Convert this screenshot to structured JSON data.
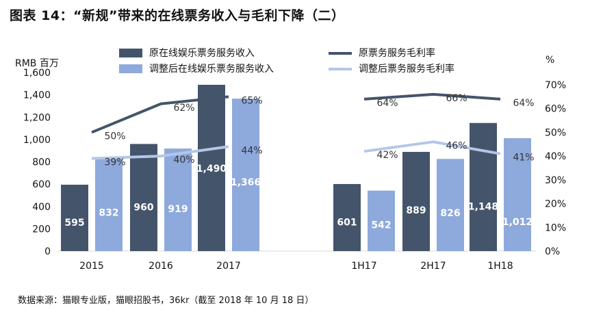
{
  "title": "图表 14：“新规”带来的在线票务收入与毛利下降（二）",
  "source": "数据来源：猫眼专业版，猫眼招股书，36kr（截至 2018 年 10 月 18 日）",
  "chart_data": {
    "type": "bar",
    "left_axis_label": "RMB 百万",
    "right_axis_label": "%",
    "ylim": [
      0,
      1600
    ],
    "yticks": [
      "0",
      "200",
      "400",
      "600",
      "800",
      "1,000",
      "1,200",
      "1,400",
      "1,600"
    ],
    "y2lim": [
      0,
      70
    ],
    "y2ticks": [
      "0%",
      "10%",
      "20%",
      "30%",
      "40%",
      "50%",
      "60%",
      "70%"
    ],
    "categories": [
      "2015",
      "2016",
      "2017",
      "1H17",
      "2H17",
      "1H18"
    ],
    "series": [
      {
        "name": "原在线娱乐票务服务收入",
        "type": "bar",
        "color": "#44546A",
        "values": [
          595,
          960,
          1490,
          601,
          889,
          1148
        ],
        "labels": [
          "595",
          "960",
          "1,490",
          "601",
          "889",
          "1,148"
        ]
      },
      {
        "name": "调整后在线娱乐票务服务收入",
        "type": "bar",
        "color": "#8EA9DB",
        "values": [
          832,
          919,
          1366,
          542,
          826,
          1012
        ],
        "labels": [
          "832",
          "919",
          "1,366",
          "542",
          "826",
          "1,012"
        ]
      },
      {
        "name": "原票务服务毛利率",
        "type": "line",
        "axis": "right",
        "color": "#44546A",
        "values": [
          50,
          62,
          65,
          64,
          66,
          64
        ],
        "labels": [
          "50%",
          "62%",
          "65%",
          "64%",
          "66%",
          "64%"
        ]
      },
      {
        "name": "调整后票务服务毛利率",
        "type": "line",
        "axis": "right",
        "color": "#B4C7E7",
        "values": [
          39,
          40,
          44,
          42,
          46,
          41
        ],
        "labels": [
          "39%",
          "40%",
          "44%",
          "42%",
          "46%",
          "41%"
        ]
      }
    ],
    "legend_position": "top"
  }
}
